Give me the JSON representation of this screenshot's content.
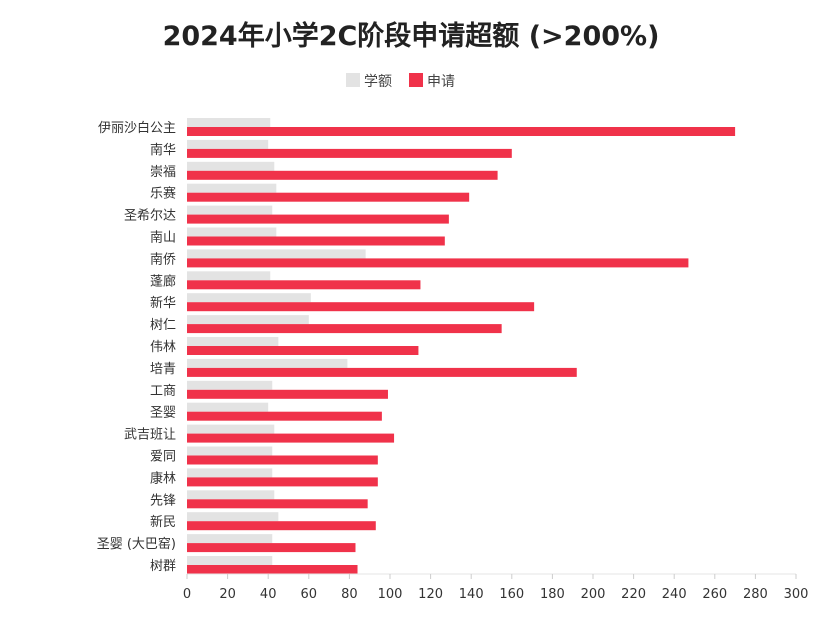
{
  "chart_data": {
    "type": "bar",
    "orientation": "horizontal",
    "title": "2024年小学2C阶段申请超额 (>200%)",
    "xlabel": "",
    "ylabel": "",
    "xlim": [
      0,
      300
    ],
    "xticks": [
      0,
      20,
      40,
      60,
      80,
      100,
      120,
      140,
      160,
      180,
      200,
      220,
      240,
      260,
      280,
      300
    ],
    "grid": false,
    "legend_position": "top-center",
    "categories": [
      "伊丽沙白公主",
      "南华",
      "崇福",
      "乐赛",
      "圣希尔达",
      "南山",
      "南侨",
      "蓬廊",
      "新华",
      "树仁",
      "伟林",
      "培青",
      "工商",
      "圣婴",
      "武吉班让",
      "爱同",
      "康林",
      "先锋",
      "新民",
      "圣婴 (大巴窑)",
      "树群"
    ],
    "series": [
      {
        "name": "学额",
        "color": "#e3e3e3",
        "values": [
          41,
          40,
          43,
          44,
          42,
          44,
          88,
          41,
          61,
          60,
          45,
          79,
          42,
          40,
          43,
          42,
          42,
          43,
          45,
          42,
          42
        ]
      },
      {
        "name": "申请",
        "color": "#f0324a",
        "values": [
          270,
          160,
          153,
          139,
          129,
          127,
          247,
          115,
          171,
          155,
          114,
          192,
          99,
          96,
          102,
          94,
          94,
          89,
          93,
          83,
          84
        ]
      }
    ]
  }
}
